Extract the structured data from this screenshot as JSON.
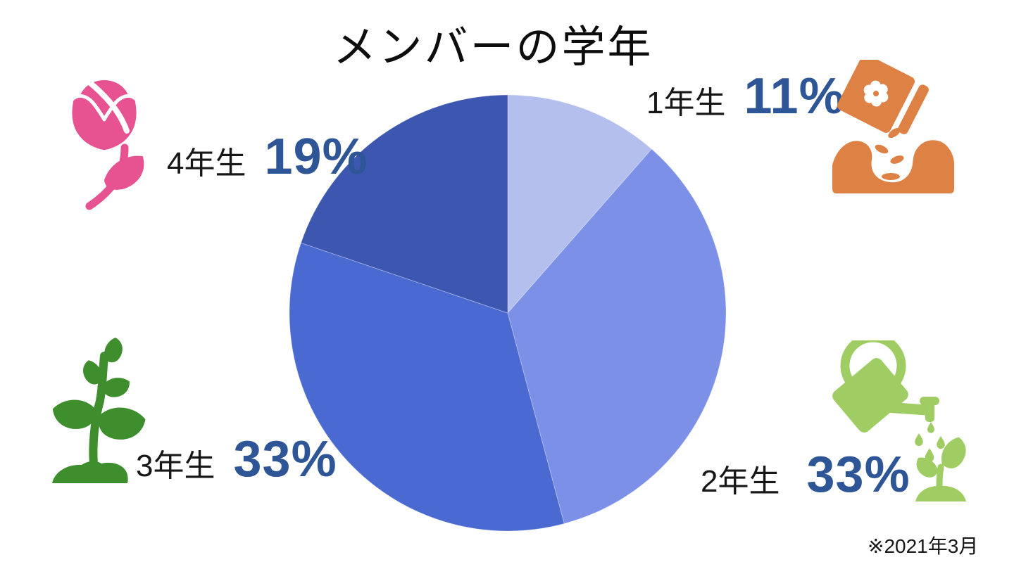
{
  "title": "メンバーの学年",
  "footnote": "※2021年3月",
  "chart_data": {
    "type": "pie",
    "title": "メンバーの学年",
    "start_angle_deg": -90,
    "direction": "clockwise",
    "legend_position": "around-pie",
    "percent_text_color": "#2E5596",
    "label_text_color": "#171717",
    "segments": [
      {
        "id": "year1",
        "label": "1年生",
        "value": 11,
        "pct": "11%",
        "color": "#B4BFED"
      },
      {
        "id": "year2",
        "label": "2年生",
        "value": 33,
        "pct": "33%",
        "color": "#7C90E8"
      },
      {
        "id": "year3",
        "label": "3年生",
        "value": 33,
        "pct": "33%",
        "color": "#4A6AD2"
      },
      {
        "id": "year4",
        "label": "4年生",
        "value": 19,
        "pct": "19%",
        "color": "#3D56B0"
      }
    ]
  },
  "icons": {
    "tulip": {
      "name": "tulip-flower-icon",
      "color": "#E75290"
    },
    "seed_packet": {
      "name": "seed-packet-sowing-icon",
      "color": "#DD8144"
    },
    "sprout": {
      "name": "sprout-plant-icon",
      "color": "#3E8E2E"
    },
    "watering_can": {
      "name": "watering-can-seedling-icon",
      "color": "#9FCD63"
    }
  }
}
